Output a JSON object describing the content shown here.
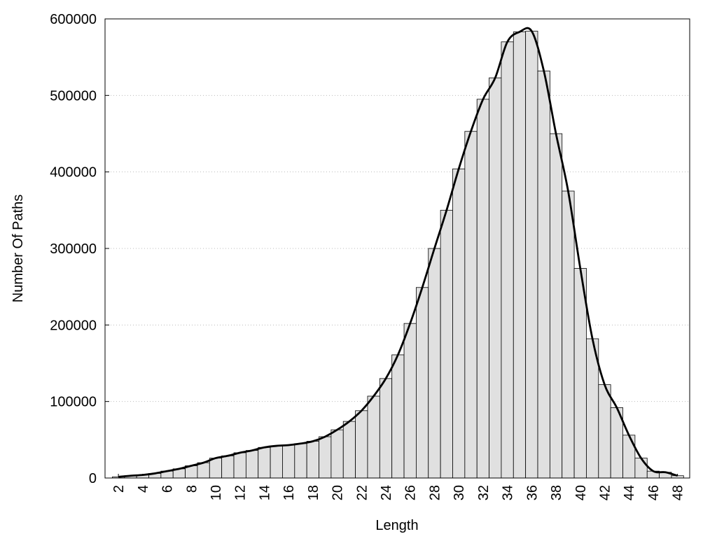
{
  "chart_data": {
    "type": "bar",
    "x": [
      2,
      3,
      4,
      5,
      6,
      7,
      8,
      9,
      10,
      11,
      12,
      13,
      14,
      15,
      16,
      17,
      18,
      19,
      20,
      21,
      22,
      23,
      24,
      25,
      26,
      27,
      28,
      29,
      30,
      31,
      32,
      33,
      34,
      35,
      36,
      37,
      38,
      39,
      40,
      41,
      42,
      43,
      44,
      45,
      46,
      47,
      48
    ],
    "values": [
      1500,
      3000,
      4000,
      6000,
      9000,
      12000,
      16000,
      20000,
      26000,
      29000,
      33000,
      36000,
      40000,
      42000,
      43000,
      45000,
      48000,
      54000,
      63000,
      74000,
      88000,
      107000,
      130000,
      161000,
      202000,
      249000,
      300000,
      350000,
      404000,
      453000,
      495000,
      523000,
      570000,
      583000,
      584000,
      532000,
      450000,
      375000,
      274000,
      182000,
      122000,
      92000,
      56000,
      26000,
      9000,
      7500,
      3000
    ],
    "color": "#e0e0e0",
    "line_color": "#000000",
    "xlabel": "Length",
    "ylabel": "Number Of Paths",
    "xlim": [
      0.9,
      49
    ],
    "xticks": [
      2,
      4,
      6,
      8,
      10,
      12,
      14,
      16,
      18,
      20,
      22,
      24,
      26,
      28,
      30,
      32,
      34,
      36,
      38,
      40,
      42,
      44,
      46,
      48
    ],
    "ylim": [
      0,
      600000
    ],
    "yticks": [
      0,
      100000,
      200000,
      300000,
      400000,
      500000,
      600000
    ],
    "grid": true
  }
}
